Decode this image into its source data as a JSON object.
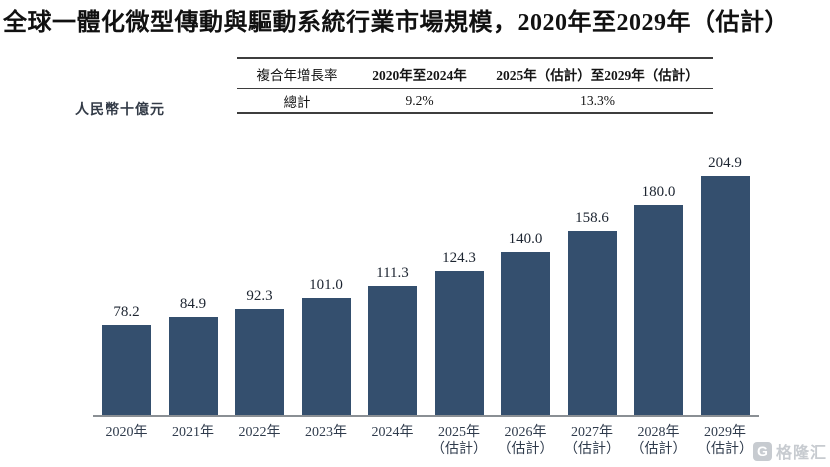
{
  "title": "全球一體化微型傳動與驅動系統行業市場規模，2020年至2029年（估計）",
  "unit_label": "人民幣十億元",
  "cagr_table": {
    "headers": [
      "複合年增長率",
      "2020年至2024年",
      "2025年（估計）至2029年（估計）"
    ],
    "rows": [
      {
        "label": "總計",
        "values": [
          "9.2%",
          "13.3%"
        ]
      }
    ]
  },
  "chart_data": {
    "type": "bar",
    "title": "全球一體化微型傳動與驅動系統行業市場規模，2020年至2029年（估計）",
    "xlabel": "",
    "ylabel": "人民幣十億元",
    "categories": [
      [
        "2020年"
      ],
      [
        "2021年"
      ],
      [
        "2022年"
      ],
      [
        "2023年"
      ],
      [
        "2024年"
      ],
      [
        "2025年",
        "（估計）"
      ],
      [
        "2026年",
        "（估計）"
      ],
      [
        "2027年",
        "（估計）"
      ],
      [
        "2028年",
        "（估計）"
      ],
      [
        "2029年",
        "（估計）"
      ]
    ],
    "values": [
      78.2,
      84.9,
      92.3,
      101.0,
      111.3,
      124.3,
      140.0,
      158.6,
      180.0,
      204.9
    ],
    "ylim": [
      0,
      220
    ],
    "grid": false,
    "legend": false,
    "value_labels": true,
    "bar_color": "#344F6E",
    "axis_line_color": "#8a8f94"
  },
  "watermark": {
    "text": "格隆汇",
    "icon": "gelonghui-logo"
  }
}
